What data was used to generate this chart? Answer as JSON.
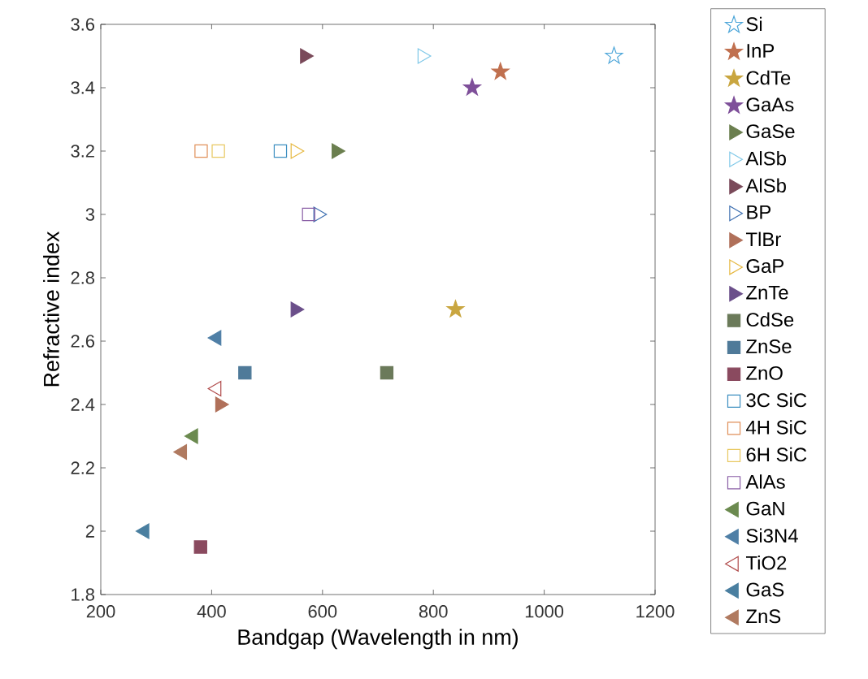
{
  "chart_data": {
    "type": "scatter",
    "xlabel": "Bandgap (Wavelength in nm)",
    "ylabel": "Refractive index",
    "xlim": [
      200,
      1200
    ],
    "xticks": [
      200,
      400,
      600,
      800,
      1000,
      1200
    ],
    "ylim": [
      1.8,
      3.6
    ],
    "yticks": [
      1.8,
      2,
      2.2,
      2.4,
      2.6,
      2.8,
      3,
      3.2,
      3.4,
      3.6
    ],
    "grid": false,
    "legend": "right",
    "series": [
      {
        "name": "Si",
        "color": "#4da6d9",
        "marker": "star-open",
        "x": [
          1126
        ],
        "values": [
          3.5
        ]
      },
      {
        "name": "InP",
        "color": "#c0704f",
        "marker": "star",
        "x": [
          921
        ],
        "values": [
          3.45
        ]
      },
      {
        "name": "CdTe",
        "color": "#c9a640",
        "marker": "star",
        "x": [
          840
        ],
        "values": [
          2.7
        ]
      },
      {
        "name": "GaAs",
        "color": "#7e4f99",
        "marker": "star",
        "x": [
          870
        ],
        "values": [
          3.4
        ]
      },
      {
        "name": "GaSe",
        "color": "#6b7f4f",
        "marker": "triangle-right",
        "x": [
          625
        ],
        "values": [
          3.2
        ]
      },
      {
        "name": "AlSb",
        "color": "#7fc8e8",
        "marker": "triangle-right-open",
        "x": [
          780
        ],
        "values": [
          3.5
        ]
      },
      {
        "name": "AlSb",
        "color": "#7a4a5a",
        "marker": "triangle-right",
        "x": [
          568
        ],
        "values": [
          3.5
        ]
      },
      {
        "name": "BP",
        "color": "#3d6fb0",
        "marker": "triangle-right-open",
        "x": [
          592
        ],
        "values": [
          3.0
        ]
      },
      {
        "name": "TlBr",
        "color": "#b0705a",
        "marker": "triangle-right",
        "x": [
          415
        ],
        "values": [
          2.4
        ]
      },
      {
        "name": "GaP",
        "color": "#e6b840",
        "marker": "triangle-right-open",
        "x": [
          551
        ],
        "values": [
          3.2
        ]
      },
      {
        "name": "ZnTe",
        "color": "#6b4f8a",
        "marker": "triangle-right",
        "x": [
          551
        ],
        "values": [
          2.7
        ]
      },
      {
        "name": "CdSe",
        "color": "#6b7a5a",
        "marker": "square",
        "x": [
          716
        ],
        "values": [
          2.5
        ]
      },
      {
        "name": "ZnSe",
        "color": "#4f7a99",
        "marker": "square",
        "x": [
          460
        ],
        "values": [
          2.5
        ]
      },
      {
        "name": "ZnO",
        "color": "#8a4a5f",
        "marker": "square",
        "x": [
          380
        ],
        "values": [
          1.95
        ]
      },
      {
        "name": "3C SiC",
        "color": "#3d8fc0",
        "marker": "square-open",
        "x": [
          524
        ],
        "values": [
          3.2
        ]
      },
      {
        "name": "4H SiC",
        "color": "#e0905a",
        "marker": "square-open",
        "x": [
          381
        ],
        "values": [
          3.2
        ]
      },
      {
        "name": "6H SiC",
        "color": "#e8c860",
        "marker": "square-open",
        "x": [
          412
        ],
        "values": [
          3.2
        ]
      },
      {
        "name": "AlAs",
        "color": "#8a5fa6",
        "marker": "square-open",
        "x": [
          575
        ],
        "values": [
          3.0
        ]
      },
      {
        "name": "GaN",
        "color": "#6b8a4f",
        "marker": "triangle-left",
        "x": [
          367
        ],
        "values": [
          2.3
        ]
      },
      {
        "name": "Si3N4",
        "color": "#4f7fa6",
        "marker": "triangle-left",
        "x": [
          409
        ],
        "values": [
          2.61
        ]
      },
      {
        "name": "TiO2",
        "color": "#b04a4a",
        "marker": "triangle-left-open",
        "x": [
          409
        ],
        "values": [
          2.45
        ]
      },
      {
        "name": "GaS",
        "color": "#4a7fa0",
        "marker": "triangle-left",
        "x": [
          279
        ],
        "values": [
          2.0
        ]
      },
      {
        "name": "ZnS",
        "color": "#b07a60",
        "marker": "triangle-left",
        "x": [
          347
        ],
        "values": [
          2.25
        ]
      }
    ]
  }
}
